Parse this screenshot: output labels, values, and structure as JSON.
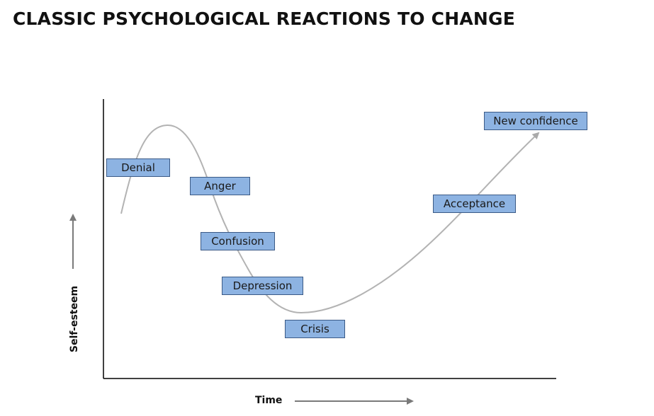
{
  "title": "CLASSIC PSYCHOLOGICAL REACTIONS TO CHANGE",
  "axes": {
    "x_label": "Time",
    "y_label": "Self-esteem"
  },
  "stages": [
    {
      "id": "denial",
      "label": "Denial"
    },
    {
      "id": "anger",
      "label": "Anger"
    },
    {
      "id": "confusion",
      "label": "Confusion"
    },
    {
      "id": "depression",
      "label": "Depression"
    },
    {
      "id": "crisis",
      "label": "Crisis"
    },
    {
      "id": "acceptance",
      "label": "Acceptance"
    },
    {
      "id": "new-confidence",
      "label": "New confidence"
    }
  ],
  "colors": {
    "label_fill": "#8db3e2",
    "label_border": "#3b5a86",
    "curve": "#b3b3b3",
    "axis": "#000000",
    "arrow": "#888888"
  }
}
